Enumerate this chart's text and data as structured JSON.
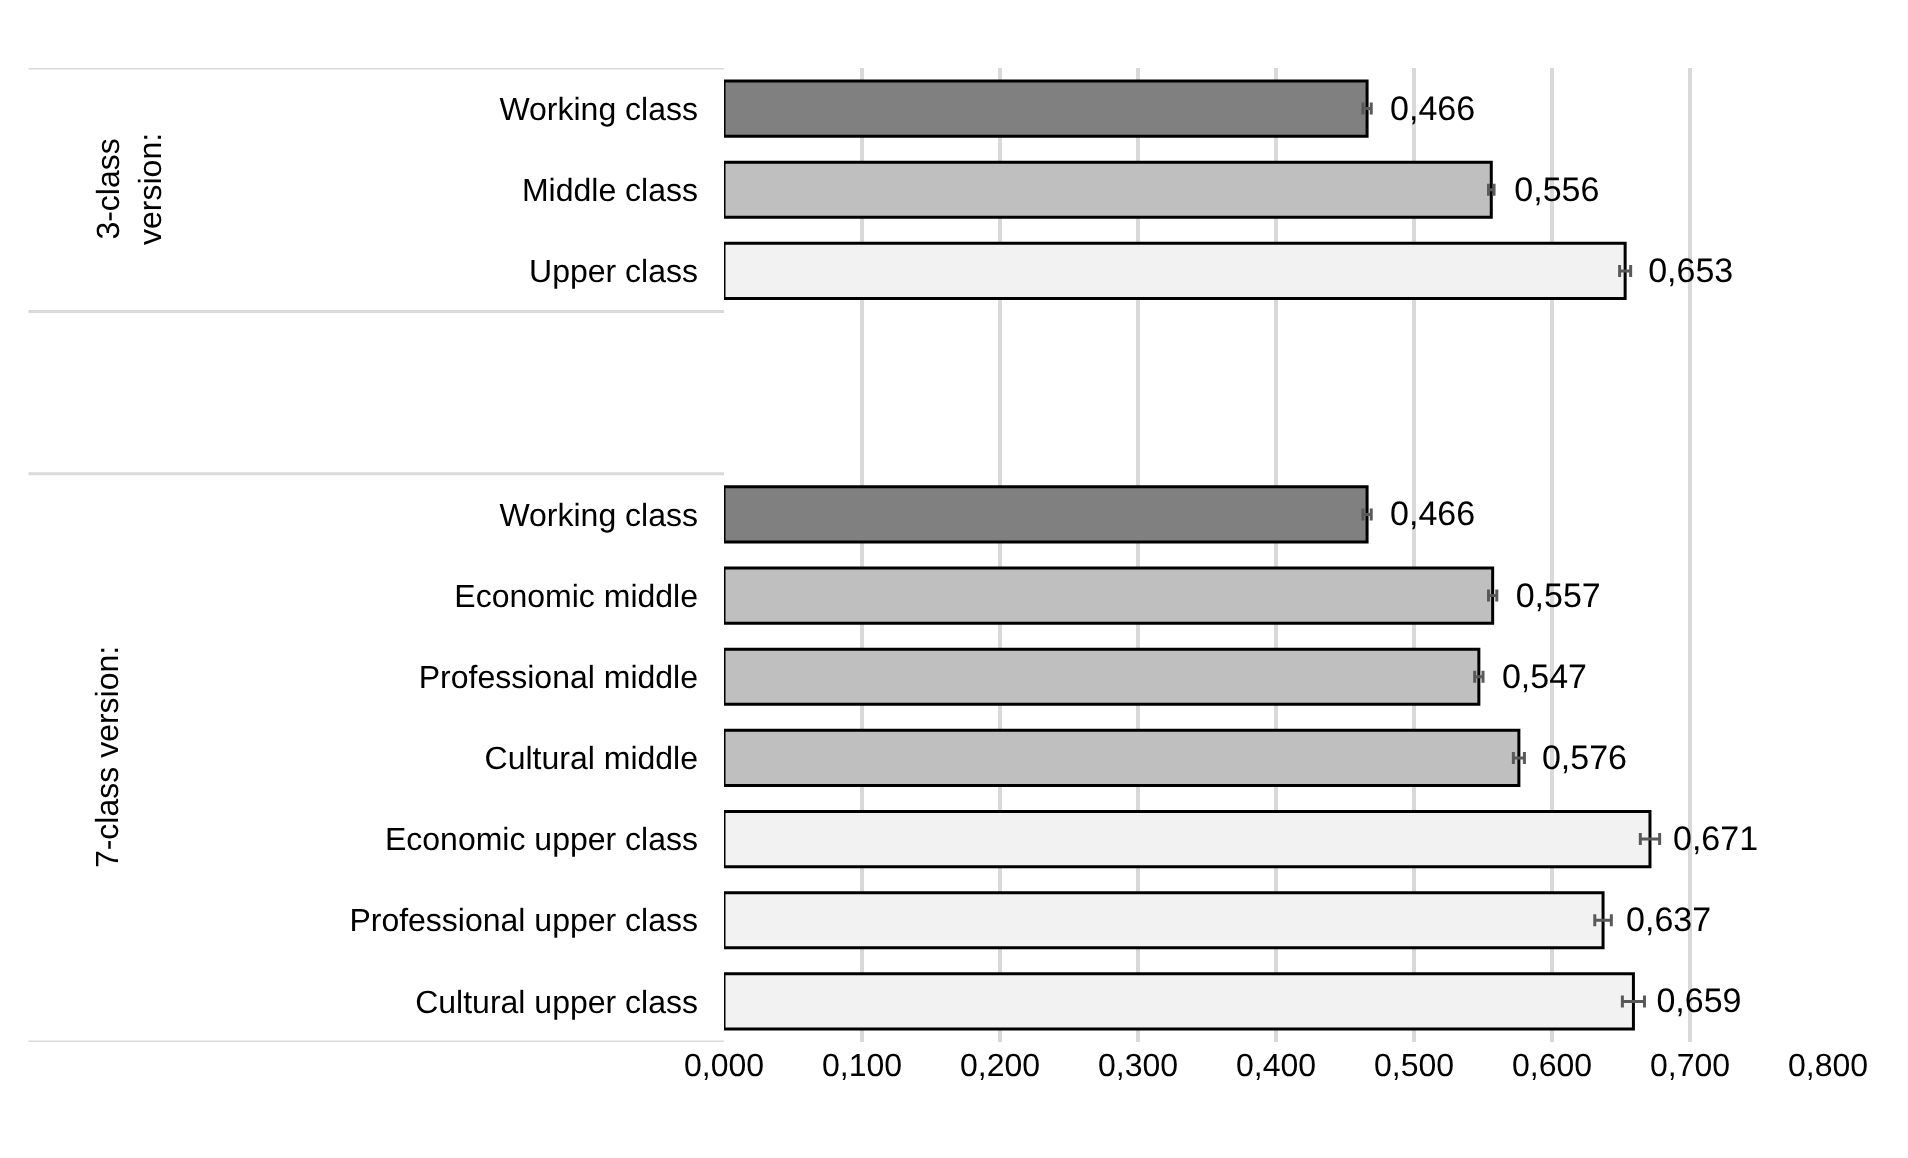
{
  "chart_data": {
    "type": "bar",
    "orientation": "horizontal",
    "categories": [
      "Working class",
      "Middle class",
      "Upper class",
      null,
      null,
      "Working class",
      "Economic middle",
      "Professional middle",
      "Cultural middle",
      "Economic upper class",
      "Professional upper class",
      "Cultural upper class"
    ],
    "values": [
      0.466,
      0.556,
      0.653,
      null,
      null,
      0.466,
      0.557,
      0.547,
      0.576,
      0.671,
      0.637,
      0.659
    ],
    "errors": [
      0.003,
      0.002,
      0.004,
      null,
      null,
      0.003,
      0.003,
      0.003,
      0.004,
      0.007,
      0.006,
      0.008
    ],
    "value_labels": [
      "0,466",
      "0,556",
      "0,653",
      null,
      null,
      "0,466",
      "0,557",
      "0,547",
      "0,576",
      "0,671",
      "0,637",
      "0,659"
    ],
    "colors": [
      "#808080",
      "#bfbfbf",
      "#f2f2f2",
      null,
      null,
      "#808080",
      "#bfbfbf",
      "#bfbfbf",
      "#bfbfbf",
      "#f2f2f2",
      "#f2f2f2",
      "#f2f2f2"
    ],
    "annotations": [
      "3-class version:",
      "7-class version:"
    ],
    "xlim": [
      0,
      0.8
    ],
    "xticks": [
      {
        "value": 0,
        "label": "0,000"
      },
      {
        "value": 0.1,
        "label": "0,100"
      },
      {
        "value": 0.2,
        "label": "0,200"
      },
      {
        "value": 0.3,
        "label": "0,300"
      },
      {
        "value": 0.4,
        "label": "0,400"
      },
      {
        "value": 0.5,
        "label": "0,500"
      },
      {
        "value": 0.6,
        "label": "0,600"
      },
      {
        "value": 0.7,
        "label": "0,700"
      },
      {
        "value": 0.8,
        "label": "0,800"
      }
    ],
    "grid": "x",
    "legend": false
  }
}
